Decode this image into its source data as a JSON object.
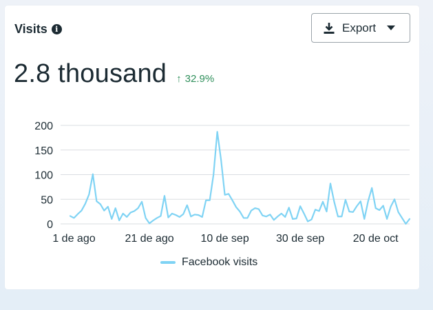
{
  "card": {
    "title": "Visits",
    "info_icon": "info-icon",
    "info_glyph": "i",
    "export_label": "Export",
    "big_value": "2.8 thousand",
    "change_text": "32.9%",
    "change_arrow": "↑",
    "colors": {
      "text": "#1c2b33",
      "positive": "#2f8f5b",
      "series": "#7fd3f4",
      "grid": "#dadde1"
    }
  },
  "chart_data": {
    "type": "line",
    "title": "",
    "xlabel": "",
    "ylabel": "",
    "ylim": [
      0,
      200
    ],
    "yticks": [
      0,
      50,
      100,
      150,
      200
    ],
    "xtick_labels": [
      "1 de ago",
      "21 de ago",
      "10 de sep",
      "30 de sep",
      "20 de oct"
    ],
    "xtick_day_index": [
      1,
      21,
      41,
      61,
      81
    ],
    "grid": true,
    "legend": "bottom",
    "series": [
      {
        "name": "Facebook visits",
        "values": [
          16,
          12,
          20,
          27,
          41,
          60,
          101,
          46,
          40,
          27,
          35,
          10,
          32,
          7,
          21,
          14,
          23,
          26,
          32,
          45,
          12,
          1,
          7,
          12,
          16,
          57,
          13,
          21,
          18,
          14,
          20,
          38,
          15,
          19,
          18,
          14,
          48,
          48,
          100,
          187,
          130,
          59,
          61,
          48,
          34,
          25,
          12,
          12,
          27,
          32,
          30,
          17,
          15,
          19,
          8,
          15,
          21,
          14,
          33,
          10,
          11,
          36,
          21,
          5,
          9,
          29,
          26,
          45,
          25,
          82,
          45,
          15,
          15,
          49,
          25,
          24,
          36,
          46,
          10,
          46,
          73,
          32,
          28,
          37,
          10,
          35,
          50,
          24,
          12,
          0,
          10
        ]
      }
    ]
  }
}
